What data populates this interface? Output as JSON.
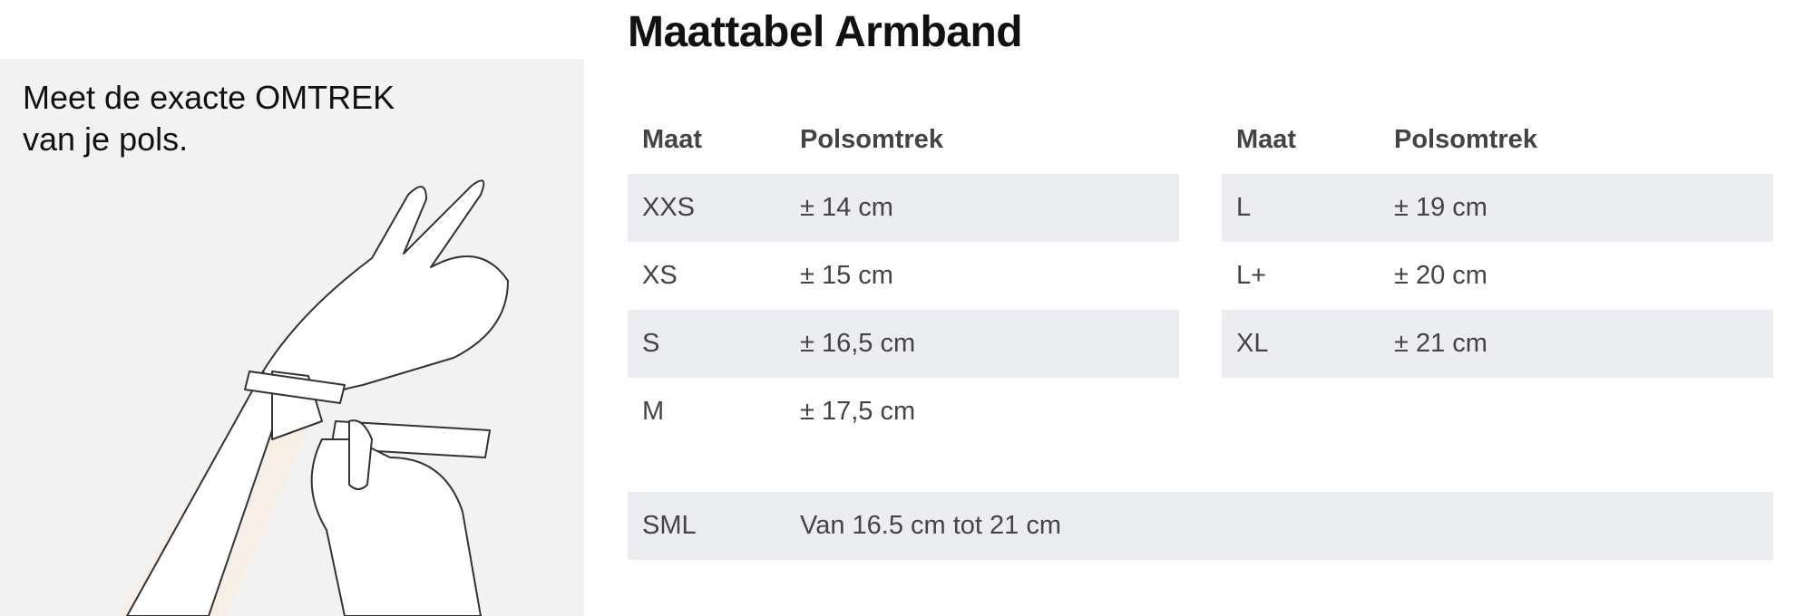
{
  "title": "Maattabel Armband",
  "instruction": {
    "line1": "Meet de exacte OMTREK",
    "line2": "van je pols."
  },
  "illustration": "hand-measuring-wrist-with-tape",
  "table": {
    "headers": [
      "Maat",
      "Polsomtrek"
    ],
    "left": [
      {
        "size": "XXS",
        "value": "± 14 cm"
      },
      {
        "size": "XS",
        "value": "± 15 cm"
      },
      {
        "size": "S",
        "value": "± 16,5 cm"
      },
      {
        "size": "M",
        "value": "± 17,5 cm"
      }
    ],
    "right": [
      {
        "size": "L",
        "value": "± 19 cm"
      },
      {
        "size": "L+",
        "value": "± 20 cm"
      },
      {
        "size": "XL",
        "value": "± 21 cm"
      }
    ],
    "sml": {
      "size": "SML",
      "value": "Van 16.5 cm tot 21 cm"
    }
  },
  "colors": {
    "row_stripe": "#ecedf0",
    "panel": "#f2f2f2"
  }
}
